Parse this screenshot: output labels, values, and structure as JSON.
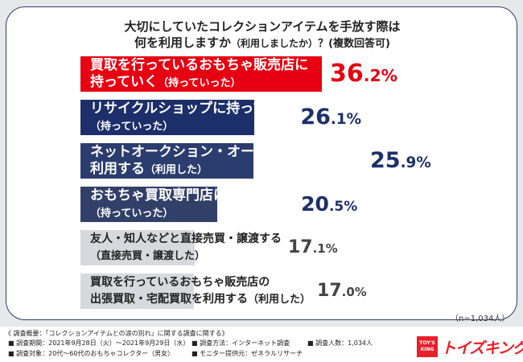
{
  "header": {
    "title_line1": "大切にしていたコレクションアイテムを手放す際は",
    "title_line2": "何を利用しますか",
    "title_note": "（利用しましたか）",
    "title_tail": "？(複数回答可)"
  },
  "chart_data": {
    "type": "bar",
    "orientation": "horizontal",
    "unit": "%",
    "categories": [
      {
        "line1": "買取を行っているおもちゃ販売店に",
        "line2": "持っていく",
        "note": "（持っていった）"
      },
      {
        "line1": "リサイクルショップに持っていく",
        "line2": "",
        "note": "（持っていった）"
      },
      {
        "line1": "ネットオークション・オークションアプリを",
        "line2": "利用する",
        "note": "（利用した）"
      },
      {
        "line1": "おもちゃ買取専門店に持っていく",
        "line2": "",
        "note": "（持っていった）"
      },
      {
        "line1": "友人・知人などと直接売買・譲渡する",
        "line2": "",
        "note": "（直接売買・譲渡した）"
      },
      {
        "line1": "買取を行っているおもちゃ販売店の",
        "line2": "出張買取・宅配買取を利用する",
        "note": "（利用した）"
      }
    ],
    "values": [
      36.2,
      26.1,
      25.9,
      20.5,
      17.1,
      17.0
    ],
    "value_labels": [
      {
        "int": "36",
        "dec": ".2%"
      },
      {
        "int": "26",
        "dec": ".1%"
      },
      {
        "int": "25",
        "dec": ".9%"
      },
      {
        "int": "20",
        "dec": ".5%"
      },
      {
        "int": "17",
        "dec": ".1%"
      },
      {
        "int": "17",
        "dec": ".0%"
      }
    ],
    "colors": [
      "#e60012",
      "#1c2f6a",
      "#2b3c6e",
      "#323f68",
      "#d7d9df",
      "#d7d9df"
    ],
    "label_colors": [
      "#ffffff",
      "#ffffff",
      "#ffffff",
      "#ffffff",
      "#222222",
      "#222222"
    ],
    "value_colors": [
      "#e60012",
      "#1c2f6a",
      "#1c2f6a",
      "#1c2f6a",
      "#444444",
      "#444444"
    ],
    "sample_size": "（n=1,034人）"
  },
  "footer": {
    "overview": "《 調査概要：「コレクションアイテムとの涙の別れ」に関する調査に関する》",
    "period": "■ 調査期間：2021年9月28日（火）～2021年9月29日（水）",
    "method": "■ 調査方法：インターネット調査",
    "count": "■ 調査人数：1,034人",
    "target": "■ 調査対象：20代～60代のおもちゃコレクター（男女）",
    "provider": "■ モニター提供元：ゼネラルリサーチ",
    "logo_box": "TOY'S KING",
    "logo_text": "トイズキング"
  }
}
